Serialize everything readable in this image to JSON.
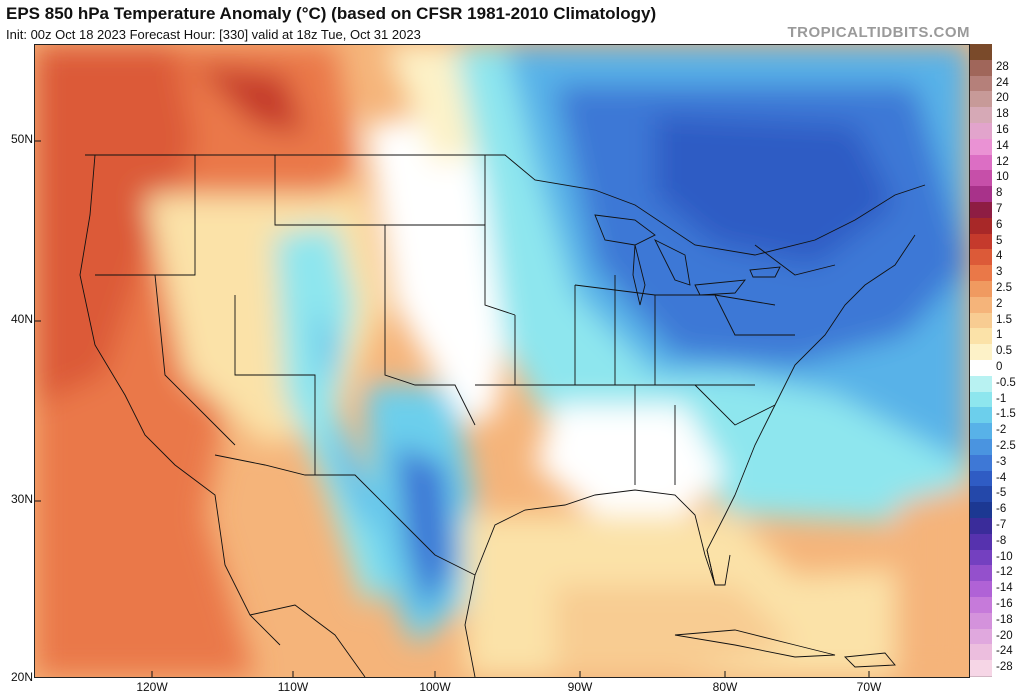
{
  "header": {
    "title": "EPS 850 hPa Temperature Anomaly (°C) (based on CFSR 1981-2010 Climatology)",
    "subtitle": "Init: 00z Oct 18 2023   Forecast Hour: [330]   valid at 18z Tue, Oct 31 2023",
    "site": "TROPICALTIDBITS.COM"
  },
  "axes": {
    "lat_labels": [
      "50N",
      "40N",
      "30N",
      "20N"
    ],
    "lon_labels": [
      "120W",
      "110W",
      "100W",
      "90W",
      "80W",
      "70W"
    ]
  },
  "colorbar": {
    "levels": [
      {
        "label": "",
        "color": "#7a4a2a"
      },
      {
        "label": "28",
        "color": "#a0665a"
      },
      {
        "label": "24",
        "color": "#b5807a"
      },
      {
        "label": "20",
        "color": "#c79a98"
      },
      {
        "label": "18",
        "color": "#d6a9b6"
      },
      {
        "label": "16",
        "color": "#e2a4cc"
      },
      {
        "label": "14",
        "color": "#ea92d4"
      },
      {
        "label": "12",
        "color": "#dc6ec4"
      },
      {
        "label": "10",
        "color": "#c64fa9"
      },
      {
        "label": "8",
        "color": "#a8328a"
      },
      {
        "label": "7",
        "color": "#8e1d43"
      },
      {
        "label": "6",
        "color": "#a82828"
      },
      {
        "label": "5",
        "color": "#c53a2c"
      },
      {
        "label": "4",
        "color": "#dc5a38"
      },
      {
        "label": "3",
        "color": "#ea7848"
      },
      {
        "label": "2.5",
        "color": "#f09a60"
      },
      {
        "label": "2",
        "color": "#f5b47a"
      },
      {
        "label": "1.5",
        "color": "#f8cc92"
      },
      {
        "label": "1",
        "color": "#fbe2a8"
      },
      {
        "label": "0.5",
        "color": "#fdf2c8"
      },
      {
        "label": "0",
        "color": "#ffffff"
      },
      {
        "label": "-0.5",
        "color": "#b8f2f2"
      },
      {
        "label": "-1",
        "color": "#8ee6ee"
      },
      {
        "label": "-1.5",
        "color": "#6ccfec"
      },
      {
        "label": "-2",
        "color": "#58b2e8"
      },
      {
        "label": "-2.5",
        "color": "#4a94e0"
      },
      {
        "label": "-3",
        "color": "#3e78d6"
      },
      {
        "label": "-4",
        "color": "#2f5cc4"
      },
      {
        "label": "-5",
        "color": "#2448aa"
      },
      {
        "label": "-6",
        "color": "#1c3892"
      },
      {
        "label": "-7",
        "color": "#3a2c9a"
      },
      {
        "label": "-8",
        "color": "#5632ae"
      },
      {
        "label": "-10",
        "color": "#7440c0"
      },
      {
        "label": "-12",
        "color": "#9450cc"
      },
      {
        "label": "-14",
        "color": "#b062d6"
      },
      {
        "label": "-16",
        "color": "#c67ada"
      },
      {
        "label": "-18",
        "color": "#d492dc"
      },
      {
        "label": "-20",
        "color": "#e0a8de"
      },
      {
        "label": "-24",
        "color": "#ecbede"
      },
      {
        "label": "-28",
        "color": "#f6d6e6"
      }
    ]
  }
}
